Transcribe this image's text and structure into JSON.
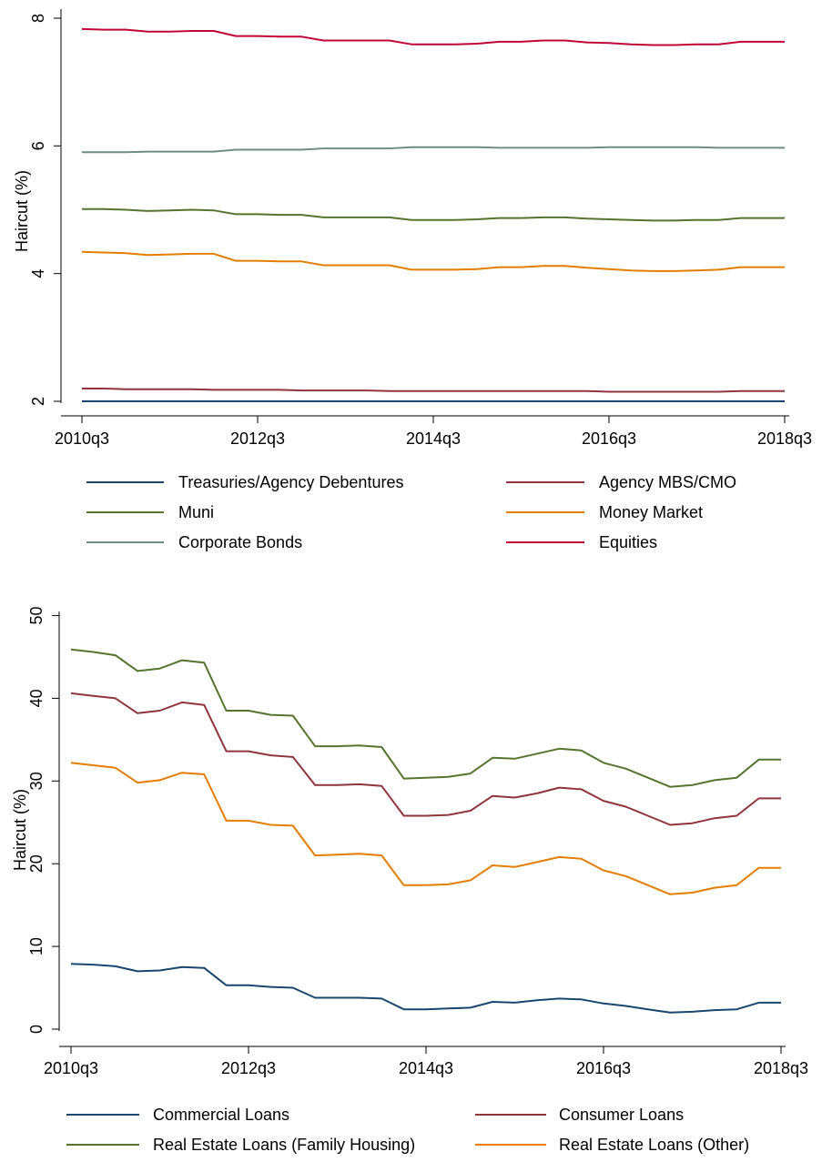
{
  "chart_data": [
    {
      "type": "line",
      "ylabel": "Haircut (%)",
      "xlabel": "",
      "ylim": [
        2,
        8
      ],
      "yticks": [
        2,
        4,
        6,
        8
      ],
      "xticks": [
        "2010q3",
        "2012q3",
        "2014q3",
        "2016q3",
        "2018q3"
      ],
      "x": [
        "2010q3",
        "2010q4",
        "2011q1",
        "2011q2",
        "2011q3",
        "2011q4",
        "2012q1",
        "2012q2",
        "2012q3",
        "2012q4",
        "2013q1",
        "2013q2",
        "2013q3",
        "2013q4",
        "2014q1",
        "2014q2",
        "2014q3",
        "2014q4",
        "2015q1",
        "2015q2",
        "2015q3",
        "2015q4",
        "2016q1",
        "2016q2",
        "2016q3",
        "2016q4",
        "2017q1",
        "2017q2",
        "2017q3",
        "2017q4",
        "2018q1",
        "2018q2",
        "2018q3"
      ],
      "grid": false,
      "legend_position": "bottom",
      "series": [
        {
          "name": "Treasuries/Agency Debentures",
          "color": "#1a476f",
          "values": [
            2.0,
            2.0,
            2.0,
            2.0,
            2.0,
            2.0,
            2.0,
            2.0,
            2.0,
            2.0,
            2.0,
            2.0,
            2.0,
            2.0,
            2.0,
            2.0,
            2.0,
            2.0,
            2.0,
            2.0,
            2.0,
            2.0,
            2.0,
            2.0,
            2.0,
            2.0,
            2.0,
            2.0,
            2.0,
            2.0,
            2.0,
            2.0,
            2.0
          ]
        },
        {
          "name": "Agency MBS/CMO",
          "color": "#90353b",
          "values": [
            2.2,
            2.2,
            2.19,
            2.19,
            2.19,
            2.19,
            2.18,
            2.18,
            2.18,
            2.18,
            2.17,
            2.17,
            2.17,
            2.17,
            2.16,
            2.16,
            2.16,
            2.16,
            2.16,
            2.16,
            2.16,
            2.16,
            2.16,
            2.16,
            2.15,
            2.15,
            2.15,
            2.15,
            2.15,
            2.15,
            2.16,
            2.16,
            2.16
          ]
        },
        {
          "name": "Muni",
          "color": "#55752f",
          "values": [
            5.01,
            5.01,
            5.0,
            4.98,
            4.99,
            5.0,
            4.99,
            4.93,
            4.93,
            4.92,
            4.92,
            4.88,
            4.88,
            4.88,
            4.88,
            4.84,
            4.84,
            4.84,
            4.85,
            4.87,
            4.87,
            4.88,
            4.88,
            4.86,
            4.85,
            4.84,
            4.83,
            4.83,
            4.84,
            4.84,
            4.87,
            4.87,
            4.87
          ]
        },
        {
          "name": "Money Market",
          "color": "#e37e00",
          "values": [
            4.34,
            4.33,
            4.32,
            4.29,
            4.3,
            4.31,
            4.31,
            4.2,
            4.2,
            4.19,
            4.19,
            4.13,
            4.13,
            4.13,
            4.13,
            4.06,
            4.06,
            4.06,
            4.07,
            4.1,
            4.1,
            4.12,
            4.12,
            4.09,
            4.07,
            4.05,
            4.04,
            4.04,
            4.05,
            4.06,
            4.1,
            4.1,
            4.1
          ]
        },
        {
          "name": "Corporate Bonds",
          "color": "#6e8e84",
          "values": [
            5.9,
            5.9,
            5.9,
            5.91,
            5.91,
            5.91,
            5.91,
            5.94,
            5.94,
            5.94,
            5.94,
            5.96,
            5.96,
            5.96,
            5.96,
            5.98,
            5.98,
            5.98,
            5.98,
            5.97,
            5.97,
            5.97,
            5.97,
            5.97,
            5.98,
            5.98,
            5.98,
            5.98,
            5.98,
            5.97,
            5.97,
            5.97,
            5.97
          ]
        },
        {
          "name": "Equities",
          "color": "#c10534",
          "values": [
            7.83,
            7.82,
            7.82,
            7.79,
            7.79,
            7.8,
            7.8,
            7.72,
            7.72,
            7.71,
            7.71,
            7.65,
            7.65,
            7.65,
            7.65,
            7.59,
            7.59,
            7.59,
            7.6,
            7.63,
            7.63,
            7.65,
            7.65,
            7.62,
            7.61,
            7.59,
            7.58,
            7.58,
            7.59,
            7.59,
            7.63,
            7.63,
            7.63
          ]
        }
      ]
    },
    {
      "type": "line",
      "ylabel": "Haircut (%)",
      "xlabel": "",
      "ylim": [
        0,
        50
      ],
      "yticks": [
        0,
        10,
        20,
        30,
        40,
        50
      ],
      "xticks": [
        "2010q3",
        "2012q3",
        "2014q3",
        "2016q3",
        "2018q3"
      ],
      "x": [
        "2010q3",
        "2010q4",
        "2011q1",
        "2011q2",
        "2011q3",
        "2011q4",
        "2012q1",
        "2012q2",
        "2012q3",
        "2012q4",
        "2013q1",
        "2013q2",
        "2013q3",
        "2013q4",
        "2014q1",
        "2014q2",
        "2014q3",
        "2014q4",
        "2015q1",
        "2015q2",
        "2015q3",
        "2015q4",
        "2016q1",
        "2016q2",
        "2016q3",
        "2016q4",
        "2017q1",
        "2017q2",
        "2017q3",
        "2017q4",
        "2018q1",
        "2018q2",
        "2018q3"
      ],
      "grid": false,
      "legend_position": "bottom",
      "series": [
        {
          "name": "Commercial Loans",
          "color": "#1a476f",
          "values": [
            7.9,
            7.8,
            7.6,
            7.0,
            7.1,
            7.5,
            7.4,
            5.3,
            5.3,
            5.1,
            5.0,
            3.8,
            3.8,
            3.8,
            3.7,
            2.4,
            2.4,
            2.5,
            2.6,
            3.3,
            3.2,
            3.5,
            3.7,
            3.6,
            3.1,
            2.8,
            2.4,
            2.0,
            2.1,
            2.3,
            2.4,
            3.2,
            3.2
          ]
        },
        {
          "name": "Consumer Loans",
          "color": "#90353b",
          "values": [
            40.6,
            40.3,
            40.0,
            38.2,
            38.5,
            39.5,
            39.2,
            33.6,
            33.6,
            33.1,
            32.9,
            29.5,
            29.5,
            29.6,
            29.4,
            25.8,
            25.8,
            25.9,
            26.4,
            28.2,
            28.0,
            28.5,
            29.2,
            29.0,
            27.6,
            26.9,
            25.8,
            24.7,
            24.9,
            25.5,
            25.8,
            27.9,
            27.9
          ]
        },
        {
          "name": "Real Estate Loans (Family Housing)",
          "color": "#55752f",
          "values": [
            45.9,
            45.6,
            45.2,
            43.3,
            43.6,
            44.6,
            44.3,
            38.5,
            38.5,
            38.0,
            37.9,
            34.2,
            34.2,
            34.3,
            34.1,
            30.3,
            30.4,
            30.5,
            30.9,
            32.8,
            32.7,
            33.3,
            33.9,
            33.7,
            32.2,
            31.5,
            30.4,
            29.3,
            29.5,
            30.1,
            30.4,
            32.6,
            32.6
          ]
        },
        {
          "name": "Real Estate Loans (Other)",
          "color": "#e37e00",
          "values": [
            32.2,
            31.9,
            31.6,
            29.8,
            30.1,
            31.0,
            30.8,
            25.2,
            25.2,
            24.7,
            24.6,
            21.0,
            21.1,
            21.2,
            21.0,
            17.4,
            17.4,
            17.5,
            18.0,
            19.8,
            19.6,
            20.2,
            20.8,
            20.6,
            19.2,
            18.5,
            17.4,
            16.3,
            16.5,
            17.1,
            17.4,
            19.5,
            19.5
          ]
        }
      ]
    }
  ]
}
